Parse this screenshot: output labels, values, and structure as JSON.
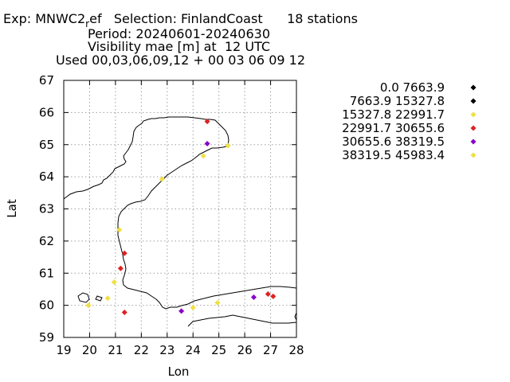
{
  "header": {
    "exp_prefix": "Exp: MNWC2",
    "exp_subscript": "r",
    "exp_suffix": "ef   Selection: FinlandCoast      18 stations",
    "period": "Period: 20240601-20240630",
    "title": "Visibility mae [m] at  12 UTC",
    "used": "Used 00,03,06,09,12 + 00 03 06 09 12"
  },
  "chart_data": {
    "type": "scatter",
    "xlabel": "Lon",
    "ylabel": "Lat",
    "xlim": [
      19,
      28
    ],
    "ylim": [
      59,
      67
    ],
    "xticks": [
      "19",
      "20",
      "21",
      "22",
      "23",
      "24",
      "25",
      "26",
      "27",
      "28"
    ],
    "yticks": [
      "59",
      "60",
      "61",
      "62",
      "63",
      "64",
      "65",
      "66",
      "67"
    ],
    "grid": true,
    "legend_position": "right",
    "legend": [
      {
        "label": "0.0 7663.9",
        "color": "#000000"
      },
      {
        "label": "7663.9 15327.8",
        "color": "#000000"
      },
      {
        "label": "15327.8 22991.7",
        "color": "#f0e040"
      },
      {
        "label": "22991.7 30655.6",
        "color": "#dd2222"
      },
      {
        "label": "30655.6 38319.5",
        "color": "#8800cc"
      },
      {
        "label": "38319.5 45983.4",
        "color": "#f0e040"
      }
    ],
    "points": [
      {
        "x": 24.55,
        "y": 65.72,
        "color": "#dd2222"
      },
      {
        "x": 24.55,
        "y": 65.03,
        "color": "#8800cc"
      },
      {
        "x": 25.35,
        "y": 64.97,
        "color": "#f0e040"
      },
      {
        "x": 24.4,
        "y": 64.65,
        "color": "#f0e040"
      },
      {
        "x": 22.8,
        "y": 63.93,
        "color": "#f0e040"
      },
      {
        "x": 21.15,
        "y": 62.35,
        "color": "#f0e040"
      },
      {
        "x": 21.35,
        "y": 61.62,
        "color": "#dd2222"
      },
      {
        "x": 21.2,
        "y": 61.15,
        "color": "#dd2222"
      },
      {
        "x": 20.95,
        "y": 60.72,
        "color": "#f0e040"
      },
      {
        "x": 20.7,
        "y": 60.22,
        "color": "#f0e040"
      },
      {
        "x": 19.95,
        "y": 60.0,
        "color": "#f0e040"
      },
      {
        "x": 21.35,
        "y": 59.78,
        "color": "#dd2222"
      },
      {
        "x": 23.55,
        "y": 59.82,
        "color": "#8800cc"
      },
      {
        "x": 24.0,
        "y": 59.93,
        "color": "#f0e040"
      },
      {
        "x": 24.95,
        "y": 60.08,
        "color": "#f0e040"
      },
      {
        "x": 26.35,
        "y": 60.25,
        "color": "#8800cc"
      },
      {
        "x": 26.9,
        "y": 60.35,
        "color": "#dd2222"
      },
      {
        "x": 27.1,
        "y": 60.28,
        "color": "#dd2222"
      }
    ]
  }
}
